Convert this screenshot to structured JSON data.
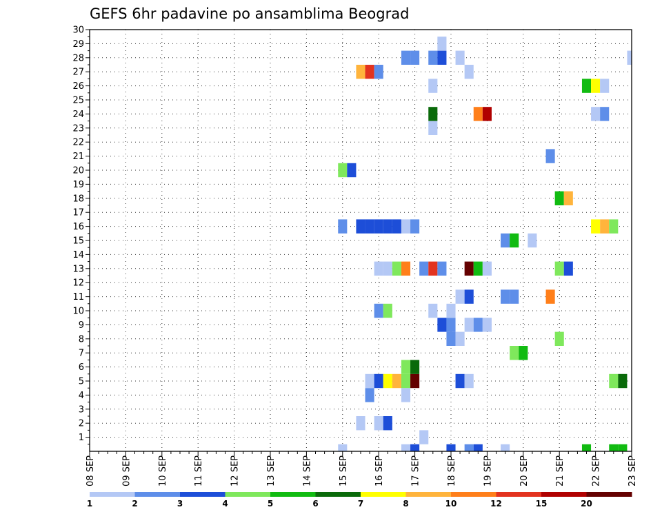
{
  "chart_data": {
    "type": "heatmap",
    "title": "GEFS 6hr padavine po ansamblima Beograd",
    "x_tick_labels": [
      "08 SEP",
      "09 SEP",
      "10 SEP",
      "11 SEP",
      "12 SEP",
      "13 SEP",
      "14 SEP",
      "15 SEP",
      "16 SEP",
      "17 SEP",
      "18 SEP",
      "19 SEP",
      "20 SEP",
      "21 SEP",
      "22 SEP",
      "23 SEP"
    ],
    "x_unit": "6-hour step from 08 SEP",
    "x_range": [
      0,
      60
    ],
    "y_ticks": [
      1,
      2,
      3,
      4,
      5,
      6,
      7,
      8,
      9,
      10,
      11,
      12,
      13,
      14,
      15,
      16,
      17,
      18,
      19,
      20,
      21,
      22,
      23,
      24,
      25,
      26,
      27,
      28,
      29,
      30
    ],
    "y_range": [
      0,
      30
    ],
    "grid": true,
    "colorbar": {
      "labels": [
        "1",
        "2",
        "3",
        "4",
        "5",
        "6",
        "7",
        "8",
        "10",
        "12",
        "15",
        "20"
      ],
      "colors": [
        "#b4c8f5",
        "#5e8ee9",
        "#1d4ed8",
        "#7fe85c",
        "#11bb11",
        "#0a6a0a",
        "#ffff00",
        "#ffb43c",
        "#ff7f1a",
        "#e3331f",
        "#b00000",
        "#640000"
      ]
    },
    "cells": [
      {
        "x": 28,
        "y": 0,
        "c": 0
      },
      {
        "x": 35,
        "y": 0,
        "c": 0
      },
      {
        "x": 36,
        "y": 0,
        "c": 2
      },
      {
        "x": 40,
        "y": 0,
        "c": 2
      },
      {
        "x": 42,
        "y": 0,
        "c": 1
      },
      {
        "x": 43,
        "y": 0,
        "c": 2
      },
      {
        "x": 46,
        "y": 0,
        "c": 0
      },
      {
        "x": 55,
        "y": 0,
        "c": 4
      },
      {
        "x": 58,
        "y": 0,
        "c": 4
      },
      {
        "x": 59,
        "y": 0,
        "c": 4
      },
      {
        "x": 37,
        "y": 1,
        "c": 0
      },
      {
        "x": 30,
        "y": 2,
        "c": 0
      },
      {
        "x": 32,
        "y": 2,
        "c": 0
      },
      {
        "x": 33,
        "y": 2,
        "c": 2
      },
      {
        "x": 31,
        "y": 4,
        "c": 1
      },
      {
        "x": 35,
        "y": 4,
        "c": 0
      },
      {
        "x": 31,
        "y": 5,
        "c": 0
      },
      {
        "x": 32,
        "y": 5,
        "c": 2
      },
      {
        "x": 33,
        "y": 5,
        "c": 6
      },
      {
        "x": 34,
        "y": 5,
        "c": 7
      },
      {
        "x": 35,
        "y": 5,
        "c": 3
      },
      {
        "x": 36,
        "y": 5,
        "c": 11
      },
      {
        "x": 41,
        "y": 5,
        "c": 2
      },
      {
        "x": 42,
        "y": 5,
        "c": 0
      },
      {
        "x": 58,
        "y": 5,
        "c": 3
      },
      {
        "x": 59,
        "y": 5,
        "c": 5
      },
      {
        "x": 35,
        "y": 6,
        "c": 3
      },
      {
        "x": 36,
        "y": 6,
        "c": 5
      },
      {
        "x": 47,
        "y": 7,
        "c": 3
      },
      {
        "x": 48,
        "y": 7,
        "c": 4
      },
      {
        "x": 40,
        "y": 8,
        "c": 1
      },
      {
        "x": 41,
        "y": 8,
        "c": 0
      },
      {
        "x": 52,
        "y": 8,
        "c": 3
      },
      {
        "x": 39,
        "y": 9,
        "c": 2
      },
      {
        "x": 40,
        "y": 9,
        "c": 1
      },
      {
        "x": 42,
        "y": 9,
        "c": 0
      },
      {
        "x": 43,
        "y": 9,
        "c": 1
      },
      {
        "x": 44,
        "y": 9,
        "c": 0
      },
      {
        "x": 32,
        "y": 10,
        "c": 1
      },
      {
        "x": 33,
        "y": 10,
        "c": 3
      },
      {
        "x": 38,
        "y": 10,
        "c": 0
      },
      {
        "x": 40,
        "y": 10,
        "c": 0
      },
      {
        "x": 41,
        "y": 11,
        "c": 0
      },
      {
        "x": 42,
        "y": 11,
        "c": 2
      },
      {
        "x": 46,
        "y": 11,
        "c": 1
      },
      {
        "x": 47,
        "y": 11,
        "c": 1
      },
      {
        "x": 51,
        "y": 11,
        "c": 8
      },
      {
        "x": 32,
        "y": 13,
        "c": 0
      },
      {
        "x": 33,
        "y": 13,
        "c": 0
      },
      {
        "x": 34,
        "y": 13,
        "c": 3
      },
      {
        "x": 35,
        "y": 13,
        "c": 8
      },
      {
        "x": 37,
        "y": 13,
        "c": 1
      },
      {
        "x": 38,
        "y": 13,
        "c": 9
      },
      {
        "x": 39,
        "y": 13,
        "c": 1
      },
      {
        "x": 42,
        "y": 13,
        "c": 11
      },
      {
        "x": 43,
        "y": 13,
        "c": 4
      },
      {
        "x": 44,
        "y": 13,
        "c": 0
      },
      {
        "x": 52,
        "y": 13,
        "c": 3
      },
      {
        "x": 53,
        "y": 13,
        "c": 2
      },
      {
        "x": 46,
        "y": 15,
        "c": 1
      },
      {
        "x": 47,
        "y": 15,
        "c": 4
      },
      {
        "x": 49,
        "y": 15,
        "c": 0
      },
      {
        "x": 28,
        "y": 16,
        "c": 1
      },
      {
        "x": 30,
        "y": 16,
        "c": 2
      },
      {
        "x": 31,
        "y": 16,
        "c": 2
      },
      {
        "x": 32,
        "y": 16,
        "c": 2
      },
      {
        "x": 33,
        "y": 16,
        "c": 2
      },
      {
        "x": 34,
        "y": 16,
        "c": 2
      },
      {
        "x": 35,
        "y": 16,
        "c": 0
      },
      {
        "x": 36,
        "y": 16,
        "c": 1
      },
      {
        "x": 56,
        "y": 16,
        "c": 6
      },
      {
        "x": 57,
        "y": 16,
        "c": 7
      },
      {
        "x": 58,
        "y": 16,
        "c": 3
      },
      {
        "x": 52,
        "y": 18,
        "c": 4
      },
      {
        "x": 53,
        "y": 18,
        "c": 7
      },
      {
        "x": 28,
        "y": 20,
        "c": 3
      },
      {
        "x": 29,
        "y": 20,
        "c": 2
      },
      {
        "x": 51,
        "y": 21,
        "c": 1
      },
      {
        "x": 38,
        "y": 23,
        "c": 0
      },
      {
        "x": 38,
        "y": 24,
        "c": 5
      },
      {
        "x": 43,
        "y": 24,
        "c": 8
      },
      {
        "x": 44,
        "y": 24,
        "c": 10
      },
      {
        "x": 56,
        "y": 24,
        "c": 0
      },
      {
        "x": 57,
        "y": 24,
        "c": 1
      },
      {
        "x": 38,
        "y": 26,
        "c": 0
      },
      {
        "x": 55,
        "y": 26,
        "c": 4
      },
      {
        "x": 56,
        "y": 26,
        "c": 6
      },
      {
        "x": 57,
        "y": 26,
        "c": 0
      },
      {
        "x": 30,
        "y": 27,
        "c": 7
      },
      {
        "x": 31,
        "y": 27,
        "c": 9
      },
      {
        "x": 32,
        "y": 27,
        "c": 1
      },
      {
        "x": 42,
        "y": 27,
        "c": 0
      },
      {
        "x": 35,
        "y": 28,
        "c": 1
      },
      {
        "x": 36,
        "y": 28,
        "c": 1
      },
      {
        "x": 38,
        "y": 28,
        "c": 1
      },
      {
        "x": 39,
        "y": 28,
        "c": 2
      },
      {
        "x": 41,
        "y": 28,
        "c": 0
      },
      {
        "x": 60,
        "y": 28,
        "c": 0
      },
      {
        "x": 39,
        "y": 29,
        "c": 0
      }
    ]
  }
}
